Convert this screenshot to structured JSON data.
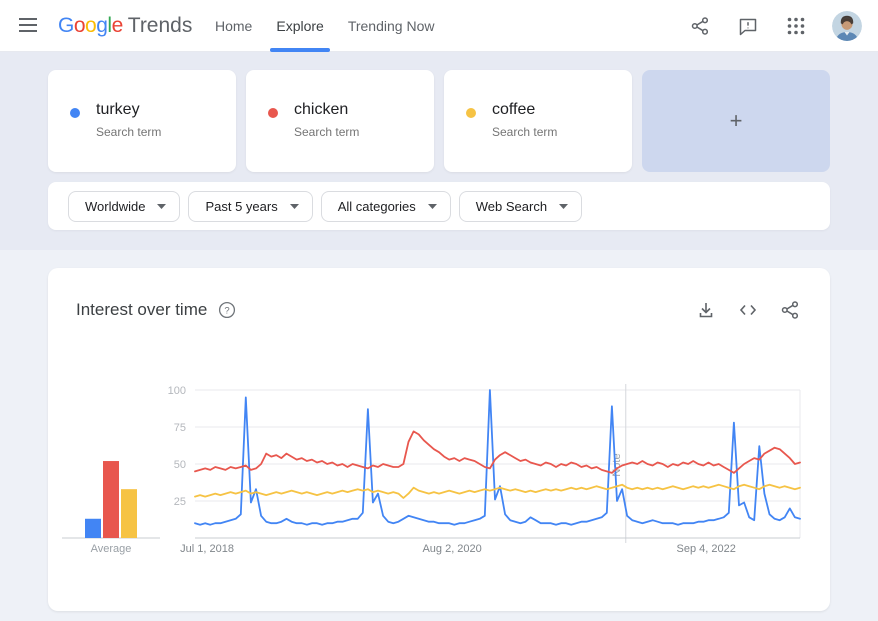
{
  "header": {
    "logo": {
      "letters": [
        "G",
        "o",
        "o",
        "g",
        "l",
        "e"
      ],
      "product": "Trends"
    },
    "nav": [
      {
        "label": "Home",
        "active": false
      },
      {
        "label": "Explore",
        "active": true
      },
      {
        "label": "Trending Now",
        "active": false
      }
    ],
    "action_icons": [
      "share-icon",
      "feedback-icon",
      "apps-grid-icon",
      "avatar"
    ]
  },
  "terms": [
    {
      "label": "turkey",
      "sublabel": "Search term",
      "color": "#4285f4"
    },
    {
      "label": "chicken",
      "sublabel": "Search term",
      "color": "#e8574e"
    },
    {
      "label": "coffee",
      "sublabel": "Search term",
      "color": "#f6c344"
    }
  ],
  "add_card": {
    "plus": "+"
  },
  "filters": [
    "Worldwide",
    "Past 5 years",
    "All categories",
    "Web Search"
  ],
  "chart_card": {
    "title": "Interest over time",
    "action_icons": [
      "download-icon",
      "embed-icon",
      "share-icon"
    ]
  },
  "chart_data": {
    "type": "line",
    "title": "Interest over time",
    "ylim": [
      0,
      100
    ],
    "yticks": [
      25,
      50,
      75,
      100
    ],
    "grid": true,
    "x_range": [
      "Jul 1, 2018",
      "Jun 2023"
    ],
    "x_ticks": [
      {
        "label": "Jul 1, 2018",
        "f": 0.02
      },
      {
        "label": "Aug 2, 2020",
        "f": 0.425
      },
      {
        "label": "Sep 4, 2022",
        "f": 0.845
      }
    ],
    "note": {
      "label": "Note",
      "f": 0.712
    },
    "average": {
      "label": "Average",
      "values": [
        13,
        52,
        33
      ]
    },
    "series": [
      {
        "name": "turkey",
        "color": "#4285f4",
        "values": [
          10,
          9,
          10,
          9,
          10,
          10,
          11,
          12,
          13,
          16,
          95,
          24,
          33,
          15,
          11,
          10,
          10,
          11,
          13,
          11,
          10,
          10,
          9,
          10,
          10,
          9,
          10,
          10,
          11,
          11,
          12,
          13,
          13,
          17,
          87,
          24,
          30,
          15,
          11,
          10,
          11,
          13,
          15,
          14,
          13,
          12,
          11,
          11,
          10,
          10,
          10,
          9,
          10,
          10,
          11,
          12,
          13,
          15,
          100,
          26,
          35,
          16,
          12,
          11,
          10,
          11,
          14,
          12,
          10,
          10,
          10,
          9,
          10,
          10,
          9,
          10,
          11,
          11,
          12,
          13,
          14,
          17,
          89,
          25,
          33,
          15,
          12,
          11,
          10,
          11,
          12,
          11,
          10,
          10,
          10,
          9,
          10,
          10,
          10,
          11,
          11,
          12,
          12,
          13,
          14,
          17,
          78,
          22,
          24,
          14,
          12,
          62,
          30,
          16,
          13,
          12,
          14,
          20,
          14,
          13
        ]
      },
      {
        "name": "chicken",
        "color": "#e8574e",
        "values": [
          45,
          46,
          47,
          46,
          48,
          47,
          46,
          48,
          47,
          48,
          49,
          46,
          47,
          50,
          57,
          55,
          56,
          54,
          57,
          55,
          53,
          54,
          52,
          53,
          51,
          52,
          50,
          51,
          49,
          50,
          48,
          50,
          49,
          48,
          47,
          49,
          48,
          50,
          49,
          48,
          48,
          50,
          65,
          72,
          70,
          66,
          63,
          60,
          58,
          55,
          53,
          54,
          52,
          54,
          53,
          52,
          50,
          48,
          47,
          53,
          56,
          58,
          56,
          54,
          52,
          53,
          51,
          50,
          49,
          51,
          50,
          48,
          50,
          49,
          51,
          50,
          48,
          49,
          47,
          48,
          46,
          45,
          44,
          47,
          49,
          50,
          51,
          50,
          52,
          50,
          49,
          51,
          50,
          48,
          50,
          49,
          51,
          50,
          52,
          50,
          49,
          51,
          49,
          50,
          48,
          46,
          44,
          47,
          50,
          52,
          54,
          53,
          57,
          59,
          61,
          60,
          57,
          54,
          50,
          51
        ]
      },
      {
        "name": "coffee",
        "color": "#f6c344",
        "values": [
          28,
          29,
          28,
          29,
          30,
          29,
          30,
          31,
          30,
          31,
          32,
          30,
          31,
          30,
          29,
          30,
          31,
          30,
          31,
          32,
          31,
          30,
          31,
          30,
          29,
          30,
          31,
          30,
          31,
          32,
          31,
          32,
          33,
          32,
          33,
          31,
          32,
          31,
          30,
          31,
          30,
          27,
          30,
          34,
          32,
          31,
          30,
          31,
          30,
          31,
          32,
          31,
          30,
          31,
          32,
          31,
          32,
          33,
          32,
          33,
          34,
          33,
          32,
          33,
          32,
          31,
          32,
          31,
          32,
          33,
          32,
          33,
          32,
          33,
          34,
          33,
          34,
          33,
          34,
          35,
          34,
          33,
          34,
          35,
          36,
          34,
          33,
          34,
          33,
          34,
          33,
          34,
          33,
          34,
          35,
          34,
          33,
          34,
          35,
          34,
          35,
          34,
          35,
          36,
          35,
          34,
          33,
          35,
          36,
          35,
          34,
          33,
          35,
          36,
          35,
          34,
          35,
          34,
          33,
          34
        ]
      }
    ]
  }
}
